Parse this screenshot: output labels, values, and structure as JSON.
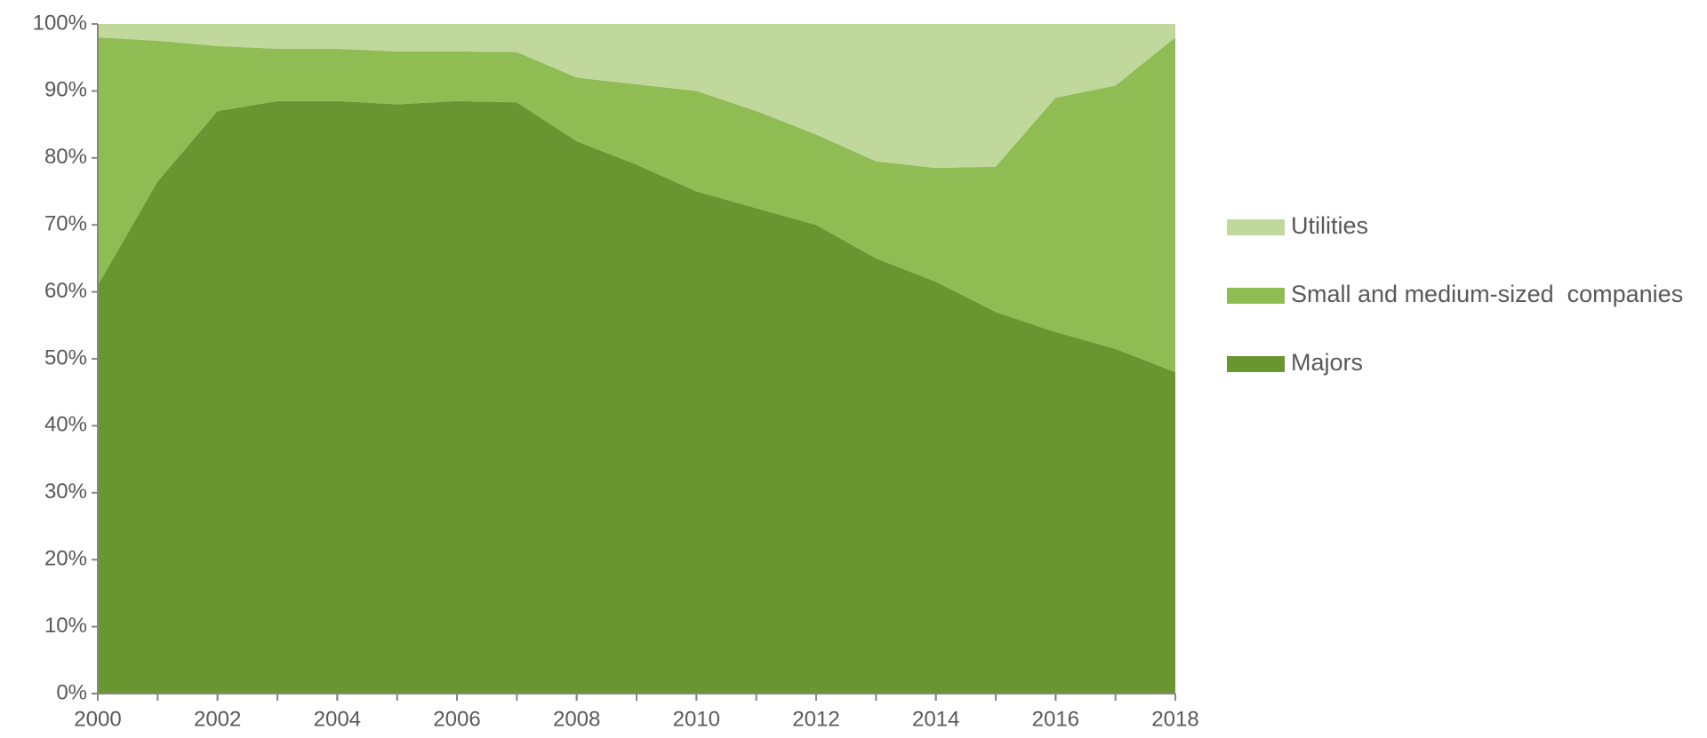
{
  "chart_data": {
    "type": "stacked-area",
    "x": [
      2000,
      2001,
      2002,
      2003,
      2004,
      2005,
      2006,
      2007,
      2008,
      2009,
      2010,
      2011,
      2012,
      2013,
      2014,
      2015,
      2016,
      2017,
      2018
    ],
    "series": [
      {
        "name": "Majors",
        "color": "#6a9632",
        "values": [
          61,
          76.5,
          87,
          88.5,
          88.5,
          88,
          88.5,
          88.3,
          82.5,
          79,
          75,
          72.5,
          70,
          65,
          61.5,
          57,
          54,
          51.5,
          48
        ]
      },
      {
        "name": "Small and medium-sized  companies",
        "color": "#8fbd54",
        "values": [
          37,
          21,
          9.7,
          7.8,
          7.8,
          7.9,
          7.4,
          7.5,
          9.5,
          12,
          15,
          14.5,
          13.5,
          14.5,
          17,
          21.7,
          35,
          39.3,
          50
        ]
      },
      {
        "name": "Utilities",
        "color": "#c0d89c",
        "values": [
          2,
          2.5,
          3.3,
          3.7,
          3.7,
          4.1,
          4.1,
          4.2,
          8,
          9,
          10,
          13,
          16.5,
          20.5,
          21.5,
          21.3,
          11,
          9.2,
          2
        ]
      }
    ],
    "xlim": [
      2000,
      2018
    ],
    "xticks": [
      2000,
      2002,
      2004,
      2006,
      2008,
      2010,
      2012,
      2014,
      2016,
      2018
    ],
    "ylim": [
      0,
      100
    ],
    "yticks": [
      {
        "value": 0,
        "label": "0%"
      },
      {
        "value": 10,
        "label": "10%"
      },
      {
        "value": 20,
        "label": "20%"
      },
      {
        "value": 30,
        "label": "30%"
      },
      {
        "value": 40,
        "label": "40%"
      },
      {
        "value": 50,
        "label": "50%"
      },
      {
        "value": 60,
        "label": "60%"
      },
      {
        "value": 70,
        "label": "70%"
      },
      {
        "value": 80,
        "label": "80%"
      },
      {
        "value": 90,
        "label": "90%"
      },
      {
        "value": 100,
        "label": "100%"
      }
    ],
    "legend": "right"
  }
}
